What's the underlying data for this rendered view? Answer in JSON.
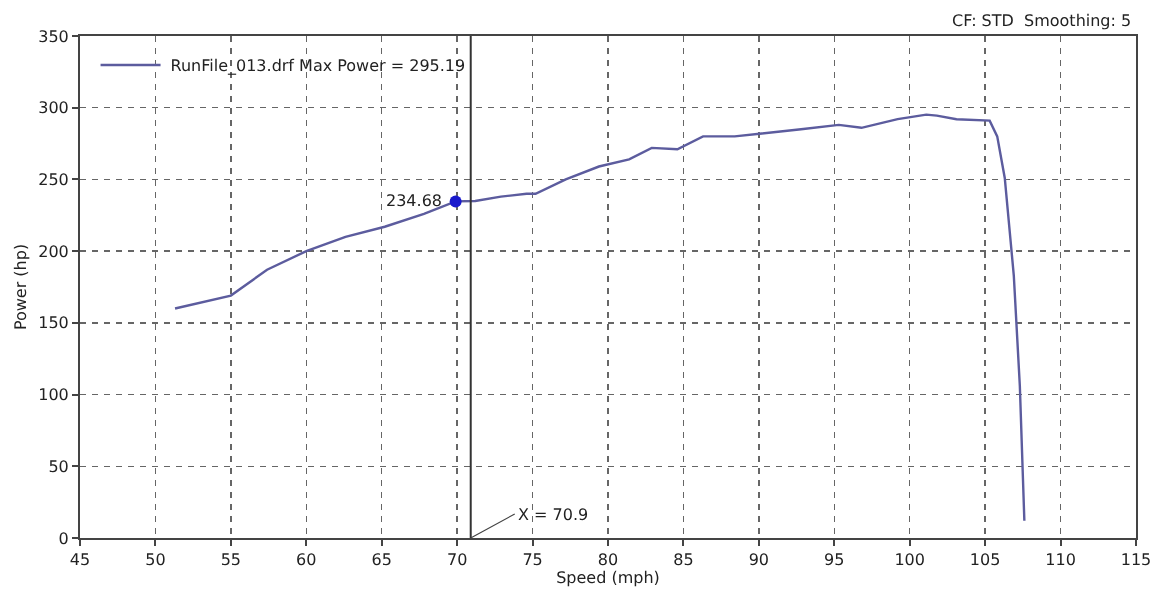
{
  "chart_data": {
    "type": "line",
    "xlabel": "Speed (mph)",
    "ylabel": "Power (hp)",
    "series": [
      {
        "name": "RunFile_013.drf Max Power = 295.19",
        "color": "#5c5c9e",
        "x": [
          51.3,
          55,
          57.4,
          60,
          62.6,
          65.2,
          67.8,
          69.9,
          71.2,
          72.9,
          74.6,
          75.2,
          77.2,
          79.4,
          81.4,
          82.9,
          84.6,
          86.3,
          88.4,
          90.2,
          92.8,
          95.3,
          96.8,
          99.2,
          101.1,
          101.8,
          103.1,
          105.3,
          105.8,
          106.3,
          106.9,
          107.3,
          107.6
        ],
        "values": [
          160,
          169,
          187,
          200,
          210,
          217,
          226,
          234.68,
          235,
          238,
          240,
          240,
          250,
          259,
          264,
          272,
          271,
          280,
          280,
          282,
          285,
          288,
          286,
          292,
          295.19,
          294.5,
          292,
          291,
          280,
          251,
          183,
          106,
          12
        ]
      },
      {
        "type": "scatter",
        "color": "#1a1acc",
        "x": [
          69.9
        ],
        "values": [
          234.68
        ]
      }
    ],
    "annotations": [
      {
        "text": "234.68",
        "x": 69.9,
        "y": 234.68
      },
      "CF: STD  Smoothing: 5"
    ],
    "ref_lines": [
      {
        "axis": "x",
        "value": 70.9,
        "label": "X = 70.9",
        "color": "#333333"
      }
    ],
    "xlim": [
      45,
      115
    ],
    "xticks": [
      45,
      50,
      55,
      60,
      65,
      70,
      75,
      80,
      85,
      90,
      95,
      100,
      105,
      110,
      115
    ],
    "ylim": [
      0,
      350
    ],
    "yticks": [
      0,
      50,
      100,
      150,
      200,
      250,
      300,
      350
    ],
    "grid": true,
    "legend": "top left",
    "line_style": "solid"
  }
}
